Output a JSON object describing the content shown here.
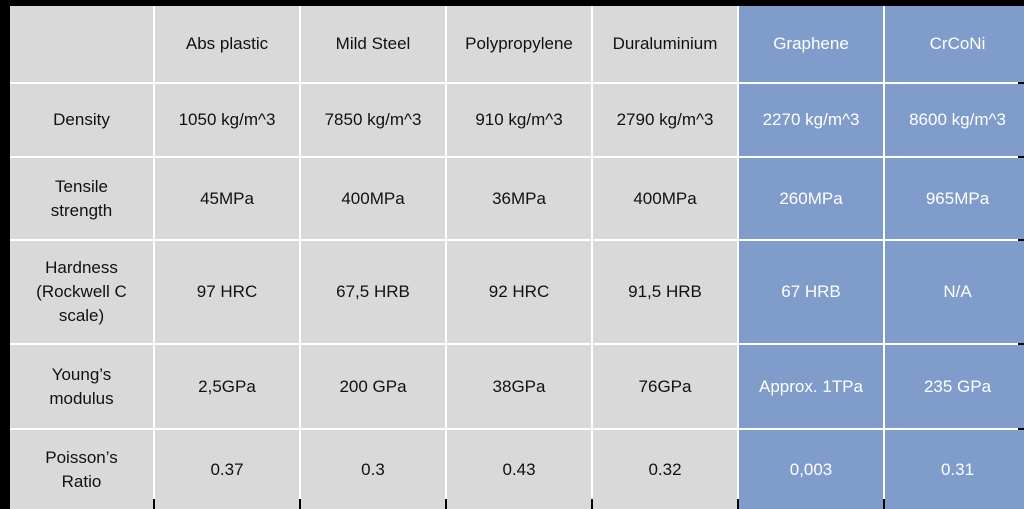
{
  "table": {
    "header": [
      "Abs plastic",
      "Mild Steel",
      "Polypropylene",
      "Duraluminium",
      "Graphene",
      "CrCoNi"
    ],
    "rows": [
      [
        "Density",
        "1050 kg/m^3",
        "7850 kg/m^3",
        "910 kg/m^3",
        "2790 kg/m^3",
        "2270 kg/m^3",
        "8600 kg/m^3"
      ],
      [
        "Tensile strength",
        "45MPa",
        "400MPa",
        "36MPa",
        "400MPa",
        "260MPa",
        "965MPa"
      ],
      [
        "Hardness (Rockwell C scale)",
        "97 HRC",
        "67,5 HRB",
        "92 HRC",
        "91,5 HRB",
        "67 HRB",
        "N/A"
      ],
      [
        "Young’s modulus",
        "2,5GPa",
        "200 GPa",
        "38GPa",
        "76GPa",
        "Approx. 1TPa",
        "235 GPa"
      ],
      [
        "Poisson’s Ratio",
        "0.37",
        "0.3",
        "0.43",
        "0.32",
        "0,003",
        "0.31"
      ]
    ]
  }
}
